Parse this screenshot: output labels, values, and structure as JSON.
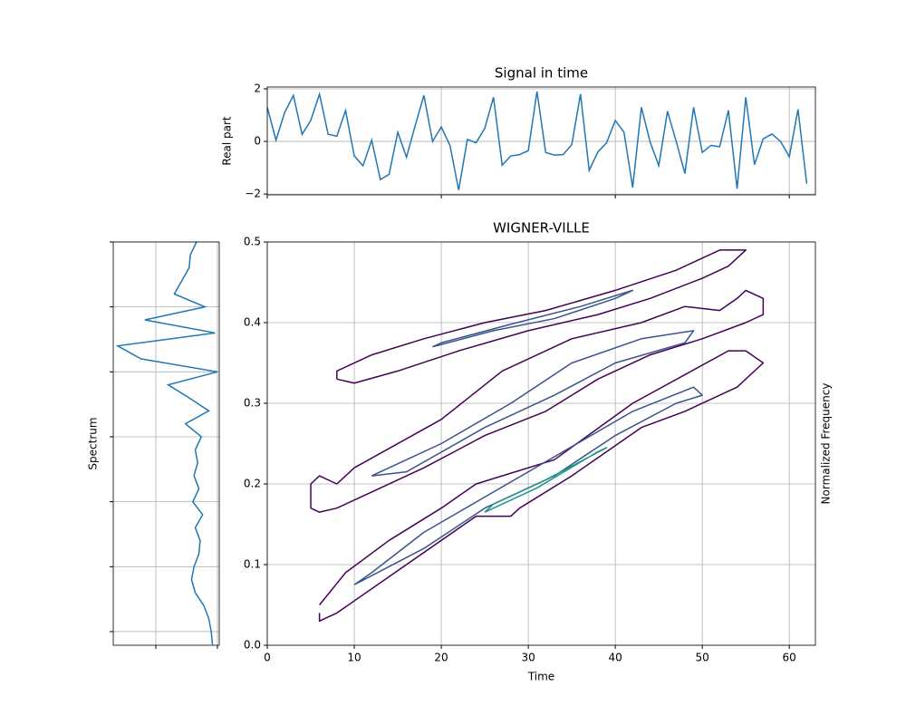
{
  "chart_data": [
    {
      "type": "line",
      "title": "Signal in time",
      "ylabel": "Real part",
      "color": "#1f77b4",
      "x": [
        0,
        1,
        2,
        3,
        4,
        5,
        6,
        7,
        8,
        9,
        10,
        11,
        12,
        13,
        14,
        15,
        16,
        17,
        18,
        19,
        20,
        21,
        22,
        23,
        24,
        25,
        26,
        27,
        28,
        29,
        30,
        31,
        32,
        33,
        34,
        35,
        36,
        37,
        38,
        39,
        40,
        41,
        42,
        43,
        44,
        45,
        46,
        47,
        48,
        49,
        50,
        51,
        52,
        53,
        54,
        55,
        56,
        57,
        58,
        59,
        60,
        61,
        62
      ],
      "values": [
        1.3,
        0.05,
        1.1,
        1.75,
        0.27,
        0.8,
        1.8,
        0.27,
        0.2,
        1.18,
        -0.55,
        -0.93,
        0.05,
        -1.45,
        -1.25,
        0.35,
        -0.6,
        0.6,
        1.75,
        0.0,
        0.55,
        -0.15,
        -1.85,
        0.08,
        -0.05,
        0.5,
        1.68,
        -0.9,
        -0.55,
        -0.5,
        -0.35,
        1.9,
        -0.42,
        -0.52,
        -0.5,
        -0.12,
        1.8,
        -1.1,
        -0.4,
        -0.05,
        0.8,
        0.35,
        -1.75,
        1.3,
        -0.02,
        -0.92,
        1.15,
        0.0,
        -1.22,
        1.3,
        -0.42,
        -0.15,
        -0.2,
        1.18,
        -1.8,
        1.68,
        -0.88,
        0.1,
        0.28,
        0.0,
        -0.58,
        1.22,
        -1.6
      ],
      "xlim": [
        0,
        63
      ],
      "xticks": [
        0,
        20,
        40,
        60
      ],
      "show_xticklabels": false,
      "ylim": [
        -2.03,
        2.07
      ],
      "yticks": [
        {
          "value": -2,
          "label": "−2"
        },
        0,
        2
      ],
      "grid": true
    },
    {
      "type": "contour",
      "title": "WIGNER-VILLE",
      "xlabel": "Time",
      "ylabel": "Normalized Frequency",
      "ylabel_side": "right",
      "xlim": [
        0,
        63
      ],
      "xticks": [
        0,
        10,
        20,
        30,
        40,
        50,
        60
      ],
      "ylim": [
        0,
        0.5
      ],
      "yticks": [
        {
          "value": 0,
          "label": "0.0"
        },
        0.1,
        0.2,
        0.3,
        0.4,
        0.5
      ],
      "grid": true,
      "contours": [
        {
          "color": "#440154",
          "x": [
            6,
            6,
            7,
            8,
            16,
            24,
            28,
            29,
            35,
            43,
            48,
            54,
            57,
            55,
            53,
            42,
            33,
            24,
            20,
            14,
            9,
            6
          ],
          "y": [
            0.04,
            0.03,
            0.035,
            0.04,
            0.1,
            0.16,
            0.16,
            0.17,
            0.21,
            0.27,
            0.29,
            0.32,
            0.35,
            0.365,
            0.365,
            0.3,
            0.23,
            0.2,
            0.17,
            0.13,
            0.09,
            0.05
          ]
        },
        {
          "color": "#3b528b",
          "x": [
            10,
            18,
            25,
            33,
            40,
            47,
            50,
            49,
            42,
            34,
            26,
            18,
            12,
            10
          ],
          "y": [
            0.075,
            0.12,
            0.17,
            0.21,
            0.26,
            0.3,
            0.31,
            0.32,
            0.29,
            0.24,
            0.19,
            0.14,
            0.09,
            0.075
          ]
        },
        {
          "color": "#21918c",
          "x": [
            25,
            31,
            38,
            39,
            32,
            26,
            25
          ],
          "y": [
            0.165,
            0.195,
            0.24,
            0.245,
            0.205,
            0.175,
            0.165
          ]
        },
        {
          "color": "#440154",
          "x": [
            5,
            5,
            6,
            8,
            10,
            20,
            27,
            35,
            43,
            48,
            52,
            54,
            55,
            57,
            57,
            55,
            50,
            44,
            38,
            32,
            25,
            18,
            12,
            8,
            6,
            5
          ],
          "y": [
            0.17,
            0.2,
            0.21,
            0.2,
            0.22,
            0.28,
            0.34,
            0.38,
            0.4,
            0.42,
            0.415,
            0.43,
            0.44,
            0.43,
            0.41,
            0.4,
            0.38,
            0.36,
            0.33,
            0.29,
            0.26,
            0.22,
            0.19,
            0.17,
            0.165,
            0.17
          ]
        },
        {
          "color": "#3b528b",
          "x": [
            12,
            20,
            28,
            35,
            43,
            49,
            48,
            40,
            33,
            25,
            16,
            12
          ],
          "y": [
            0.21,
            0.25,
            0.3,
            0.35,
            0.38,
            0.39,
            0.375,
            0.35,
            0.31,
            0.27,
            0.215,
            0.21
          ]
        },
        {
          "color": "#440154",
          "x": [
            8,
            8,
            12,
            18,
            25,
            32,
            40,
            47,
            52,
            55,
            53,
            50,
            44,
            38,
            30,
            22,
            15,
            10,
            8
          ],
          "y": [
            0.33,
            0.34,
            0.36,
            0.38,
            0.4,
            0.415,
            0.44,
            0.465,
            0.49,
            0.49,
            0.47,
            0.455,
            0.43,
            0.41,
            0.39,
            0.365,
            0.34,
            0.325,
            0.33
          ]
        },
        {
          "color": "#3b528b",
          "x": [
            19,
            26,
            33,
            40,
            42,
            36,
            28,
            20,
            19
          ],
          "y": [
            0.37,
            0.39,
            0.405,
            0.43,
            0.44,
            0.42,
            0.398,
            0.375,
            0.37
          ]
        }
      ]
    },
    {
      "type": "spectrum",
      "ylabel": "Spectrum",
      "color": "#1f77b4",
      "values": [
        0.83,
        0.78,
        0.77,
        0.71,
        0.65,
        0.9,
        0.41,
        0.98,
        0.19,
        0.38,
        1.0,
        0.6,
        0.77,
        0.93,
        0.74,
        0.87,
        0.82,
        0.84,
        0.81,
        0.85,
        0.8,
        0.88,
        0.82,
        0.86,
        0.85,
        0.81,
        0.79,
        0.82,
        0.89,
        0.93,
        0.95,
        0.96
      ],
      "y": [
        60,
        58,
        56,
        54,
        52,
        50,
        48,
        46,
        44,
        42,
        40,
        38,
        36,
        34,
        32,
        30,
        28,
        26,
        24,
        22,
        20,
        18,
        16,
        14,
        12,
        10,
        8,
        6,
        4,
        2,
        0,
        -2
      ],
      "xlim": [
        0.154,
        1.015
      ],
      "xticks": [
        0.5,
        1.0
      ],
      "show_xticklabels": false,
      "ylim": [
        -2.1,
        60
      ],
      "yticks": [
        0,
        10,
        20,
        30,
        40,
        50,
        60
      ],
      "show_yticklabels": false,
      "grid": true
    }
  ]
}
